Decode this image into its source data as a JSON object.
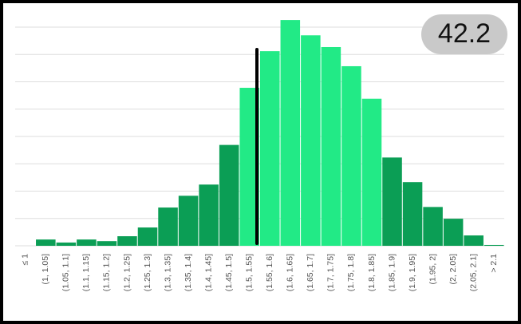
{
  "chart_data": {
    "type": "bar",
    "badge": "42.2",
    "categories": [
      "≤ 1",
      "(1, 1.05]",
      "(1.05, 1.1]",
      "(1.1, 1.15]",
      "(1.15, 1.2]",
      "(1.2, 1.25]",
      "(1.25, 1.3]",
      "(1.3, 1.35]",
      "(1.35, 1.4]",
      "(1.4, 1.45]",
      "(1.45, 1.5]",
      "(1.5, 1.55]",
      "(1.55, 1.6]",
      "(1.6, 1.65]",
      "(1.65, 1.7]",
      "(1.7, 1.75]",
      "(1.75, 1.8]",
      "(1.8, 1.85]",
      "(1.85, 1.9]",
      "(1.9, 1.95]",
      "(1.95, 2]",
      "(2, 2.05]",
      "(2.05, 2.1]",
      "> 2.1"
    ],
    "values": [
      0,
      0.23,
      0.12,
      0.23,
      0.17,
      0.35,
      0.67,
      1.4,
      1.83,
      2.24,
      3.69,
      5.78,
      7.12,
      8.26,
      7.7,
      7.27,
      6.57,
      5.38,
      3.23,
      2.33,
      1.42,
      0.99,
      0.38,
      0.03
    ],
    "colors": [
      "#0b9e55",
      "#0b9e55",
      "#0b9e55",
      "#0b9e55",
      "#0b9e55",
      "#0b9e55",
      "#0b9e55",
      "#0b9e55",
      "#0b9e55",
      "#0b9e55",
      "#0b9e55",
      "#22ea86",
      "#22ea86",
      "#22ea86",
      "#22ea86",
      "#22ea86",
      "#22ea86",
      "#22ea86",
      "#0b9e55",
      "#0b9e55",
      "#0b9e55",
      "#0b9e55",
      "#0b9e55",
      "#0b9e55"
    ],
    "ylim": [
      0,
      8.35
    ],
    "yticks": [
      0,
      1,
      2,
      3,
      4,
      5,
      6,
      7,
      8
    ],
    "grid": true
  }
}
